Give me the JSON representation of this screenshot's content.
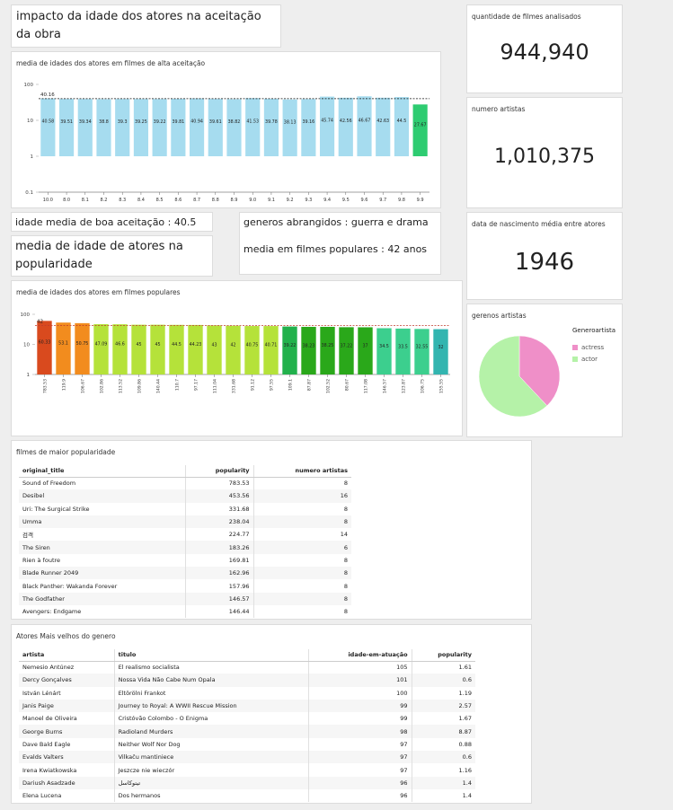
{
  "title_card": {
    "text": "impacto da idade dos atores na aceitação da obra"
  },
  "kpi_films": {
    "label": "quantidade de filmes analisados",
    "value": "944,940"
  },
  "kpi_artists": {
    "label": "numero artistas",
    "value": "1,010,375"
  },
  "kpi_birth": {
    "label": "data de nascimento média entre atores",
    "value": "1946"
  },
  "text_boa": "idade media de boa aceitação : 40.5 anos",
  "text_generos": "generos abrangidos : guerra e drama",
  "text_popularidade": "media de idade de atores na popularidade",
  "text_media_pop": "media em filmes populares : 42 anos",
  "chart1": {
    "title": "media de idades dos atores em filmes de alta aceitação",
    "y_ticks": [
      "100",
      "10",
      "1",
      "0.1"
    ],
    "ref_label": "40.16",
    "chart_data": {
      "type": "bar",
      "categories": [
        "10.0",
        "8.0",
        "8.1",
        "8.2",
        "8.3",
        "8.4",
        "8.5",
        "8.6",
        "8.7",
        "8.8",
        "8.9",
        "9.0",
        "9.1",
        "9.2",
        "9.3",
        "9.4",
        "9.5",
        "9.6",
        "9.7",
        "9.8",
        "9.9"
      ],
      "values": [
        40.58,
        39.51,
        39.34,
        38.8,
        39.3,
        39.25,
        39.22,
        39.81,
        40.94,
        39.61,
        38.82,
        41.53,
        39.78,
        38.13,
        39.16,
        45.74,
        42.56,
        46.67,
        42.63,
        44.5,
        27.67
      ],
      "labels": [
        "40.58",
        "39.51",
        "39.34",
        "38.8",
        "39.3",
        "39.25",
        "39.22",
        "39.81",
        "40.94",
        "39.61",
        "38.82",
        "41.53",
        "39.78",
        "38.13",
        "39.16",
        "45.74",
        "42.56",
        "46.67",
        "42.63",
        "44.5",
        "27.67"
      ],
      "colors": [
        "#a6dcef",
        "#a6dcef",
        "#a6dcef",
        "#a6dcef",
        "#a6dcef",
        "#a6dcef",
        "#a6dcef",
        "#a6dcef",
        "#a6dcef",
        "#a6dcef",
        "#a6dcef",
        "#a6dcef",
        "#a6dcef",
        "#a6dcef",
        "#a6dcef",
        "#a6dcef",
        "#a6dcef",
        "#a6dcef",
        "#a6dcef",
        "#a6dcef",
        "#2ecc71"
      ],
      "yscale": "log",
      "ylim": [
        0.1,
        100
      ],
      "reference_line": 40.16
    }
  },
  "chart2": {
    "title": "media de idades dos atores em filmes populares",
    "y_ticks": [
      "100",
      "10",
      "1"
    ],
    "ref_label": "42",
    "chart_data": {
      "type": "bar",
      "categories": [
        "783.53",
        "119.9",
        "106.67",
        "102.86",
        "113.52",
        "109.86",
        "140.44",
        "110.7",
        "97.17",
        "111.04",
        "331.68",
        "91.12",
        "97.55",
        "109.1",
        "87.87",
        "102.52",
        "80.67",
        "117.08",
        "146.57",
        "123.87",
        "106.75",
        "155.55"
      ],
      "values": [
        60.33,
        53.1,
        50.75,
        47.09,
        46.6,
        45,
        45,
        44.5,
        44.23,
        43,
        42,
        40.75,
        40.71,
        39.22,
        38.23,
        38.25,
        37.22,
        37,
        34.5,
        33.5,
        32.55,
        32
      ],
      "labels": [
        "60.33",
        "53.1",
        "50.75",
        "47.09",
        "46.6",
        "45",
        "45",
        "44.5",
        "44.23",
        "43",
        "42",
        "40.75",
        "40.71",
        "39.22",
        "38.23",
        "38.25",
        "37.22",
        "37",
        "34.5",
        "33.5",
        "32.55",
        "32"
      ],
      "colors": [
        "#d94a1e",
        "#f28c1e",
        "#f28c1e",
        "#b5e23a",
        "#b5e23a",
        "#b5e23a",
        "#b5e23a",
        "#b5e23a",
        "#b5e23a",
        "#b5e23a",
        "#b5e23a",
        "#b5e23a",
        "#b5e23a",
        "#22b14c",
        "#2aa81a",
        "#2aa81a",
        "#2aa81a",
        "#2aa81a",
        "#3ccf8e",
        "#3ccf8e",
        "#3ccf8e",
        "#33b5b0"
      ],
      "yscale": "log",
      "ylim": [
        1,
        100
      ],
      "reference_line": 42
    }
  },
  "pie": {
    "title": "gerenos artistas",
    "legend_title": "Generoartista",
    "chart_data": {
      "type": "pie",
      "labels": [
        "actress",
        "actor"
      ],
      "values": [
        38,
        62
      ],
      "colors": [
        "#ef8fc8",
        "#b5f2a8"
      ]
    }
  },
  "table1": {
    "title": "filmes de maior popularidade",
    "headers": [
      "original_title",
      "popularity",
      "numero artistas"
    ],
    "rows": [
      [
        "Sound of Freedom",
        "783.53",
        "8"
      ],
      [
        "Desibel",
        "453.56",
        "16"
      ],
      [
        "Uri: The Surgical Strike",
        "331.68",
        "8"
      ],
      [
        "Umma",
        "238.04",
        "8"
      ],
      [
        "검객",
        "224.77",
        "14"
      ],
      [
        "The Siren",
        "183.26",
        "6"
      ],
      [
        "Rien à foutre",
        "169.81",
        "8"
      ],
      [
        "Blade Runner 2049",
        "162.96",
        "8"
      ],
      [
        "Black Panther: Wakanda Forever",
        "157.96",
        "8"
      ],
      [
        "The Godfather",
        "146.57",
        "8"
      ],
      [
        "Avengers: Endgame",
        "146.44",
        "8"
      ]
    ]
  },
  "table2": {
    "title": "Atores Mais velhos do genero",
    "headers": [
      "artista",
      "titulo",
      "idade-em-atuação",
      "popularity"
    ],
    "rows": [
      [
        "Nemesio Antúnez",
        "El realismo socialista",
        "105",
        "1.61"
      ],
      [
        "Dercy Gonçalves",
        "Nossa Vida Não Cabe Num Opala",
        "101",
        "0.6"
      ],
      [
        "István Lénárt",
        "Eltörölni Frankot",
        "100",
        "1.19"
      ],
      [
        "Janis Paige",
        "Journey to Royal: A WWII Rescue Mission",
        "99",
        "2.57"
      ],
      [
        "Manoel de Oliveira",
        "Cristóvão Colombo - O Enigma",
        "99",
        "1.67"
      ],
      [
        "George Burns",
        "Radioland Murders",
        "98",
        "8.87"
      ],
      [
        "Dave Bald Eagle",
        "Neither Wolf Nor Dog",
        "97",
        "0.88"
      ],
      [
        "Evalds Valters",
        "Vilkaču mantiniece",
        "97",
        "0.6"
      ],
      [
        "Irena Kwiatkowska",
        "Jeszcze nie wieczór",
        "97",
        "1.16"
      ],
      [
        "Dariush Asadzade",
        "تیتوکاسل",
        "96",
        "1.4"
      ],
      [
        "Elena Lucena",
        "Dos hermanos",
        "96",
        "1.4"
      ]
    ]
  }
}
